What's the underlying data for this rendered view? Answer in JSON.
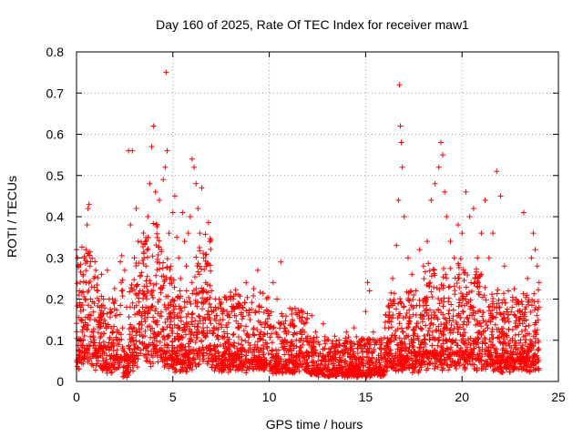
{
  "chart_data": {
    "type": "scatter",
    "title": "Day 160 of 2025, Rate Of TEC Index for receiver maw1",
    "xlabel": "GPS time / hours",
    "ylabel": "ROTI / TECUs",
    "xlim": [
      0,
      25
    ],
    "ylim": [
      0,
      0.8
    ],
    "xticks": [
      0,
      5,
      10,
      15,
      20,
      25
    ],
    "xtick_labels": [
      "0",
      "5",
      "10",
      "15",
      "20",
      "25"
    ],
    "yticks": [
      0,
      0.1,
      0.2,
      0.3,
      0.4,
      0.5,
      0.6,
      0.7,
      0.8
    ],
    "ytick_labels": [
      "0",
      "0.1",
      "0.2",
      "0.3",
      "0.4",
      "0.5",
      "0.6",
      "0.7",
      "0.8"
    ],
    "grid": true,
    "marker": "+",
    "color": "#ff0000",
    "series": [
      {
        "name": "ROTI",
        "points": [
          [
            0.0,
            0.32
          ],
          [
            0.05,
            0.3
          ],
          [
            0.1,
            0.28
          ],
          [
            0.15,
            0.22
          ],
          [
            0.2,
            0.18
          ],
          [
            0.25,
            0.15
          ],
          [
            0.3,
            0.12
          ],
          [
            0.35,
            0.26
          ],
          [
            0.4,
            0.3
          ],
          [
            0.45,
            0.2
          ],
          [
            0.5,
            0.24
          ],
          [
            0.55,
            0.38
          ],
          [
            0.6,
            0.42
          ],
          [
            0.65,
            0.43
          ],
          [
            0.7,
            0.28
          ],
          [
            0.75,
            0.16
          ],
          [
            0.8,
            0.12
          ],
          [
            0.9,
            0.25
          ],
          [
            1.0,
            0.27
          ],
          [
            1.1,
            0.22
          ],
          [
            1.2,
            0.18
          ],
          [
            1.3,
            0.26
          ],
          [
            1.4,
            0.2
          ],
          [
            1.5,
            0.14
          ],
          [
            1.6,
            0.27
          ],
          [
            1.7,
            0.2
          ],
          [
            1.8,
            0.13
          ],
          [
            1.9,
            0.1
          ],
          [
            2.0,
            0.16
          ],
          [
            2.1,
            0.12
          ],
          [
            2.2,
            0.09
          ],
          [
            2.3,
            0.06
          ],
          [
            2.4,
            0.08
          ],
          [
            2.5,
            0.27
          ],
          [
            2.6,
            0.18
          ],
          [
            2.7,
            0.56
          ],
          [
            2.8,
            0.38
          ],
          [
            2.9,
            0.56
          ],
          [
            3.0,
            0.3
          ],
          [
            3.1,
            0.42
          ],
          [
            3.2,
            0.34
          ],
          [
            3.3,
            0.22
          ],
          [
            3.4,
            0.16
          ],
          [
            3.5,
            0.3
          ],
          [
            3.6,
            0.28
          ],
          [
            3.7,
            0.4
          ],
          [
            3.8,
            0.48
          ],
          [
            3.9,
            0.57
          ],
          [
            4.0,
            0.62
          ],
          [
            4.1,
            0.46
          ],
          [
            4.2,
            0.38
          ],
          [
            4.3,
            0.44
          ],
          [
            4.4,
            0.32
          ],
          [
            4.5,
            0.49
          ],
          [
            4.6,
            0.52
          ],
          [
            4.65,
            0.75
          ],
          [
            4.7,
            0.56
          ],
          [
            4.8,
            0.36
          ],
          [
            4.9,
            0.28
          ],
          [
            5.0,
            0.41
          ],
          [
            5.1,
            0.45
          ],
          [
            5.2,
            0.35
          ],
          [
            5.3,
            0.3
          ],
          [
            5.4,
            0.25
          ],
          [
            5.5,
            0.41
          ],
          [
            5.6,
            0.34
          ],
          [
            5.7,
            0.28
          ],
          [
            5.8,
            0.36
          ],
          [
            5.9,
            0.4
          ],
          [
            6.0,
            0.54
          ],
          [
            6.1,
            0.52
          ],
          [
            6.2,
            0.48
          ],
          [
            6.3,
            0.42
          ],
          [
            6.4,
            0.36
          ],
          [
            6.5,
            0.47
          ],
          [
            6.6,
            0.3
          ],
          [
            6.7,
            0.24
          ],
          [
            6.8,
            0.2
          ],
          [
            7.0,
            0.22
          ],
          [
            7.2,
            0.18
          ],
          [
            7.4,
            0.2
          ],
          [
            7.6,
            0.15
          ],
          [
            7.8,
            0.17
          ],
          [
            8.0,
            0.2
          ],
          [
            8.2,
            0.16
          ],
          [
            8.4,
            0.14
          ],
          [
            8.6,
            0.18
          ],
          [
            8.8,
            0.24
          ],
          [
            9.0,
            0.15
          ],
          [
            9.2,
            0.13
          ],
          [
            9.4,
            0.27
          ],
          [
            9.6,
            0.18
          ],
          [
            9.8,
            0.14
          ],
          [
            10.0,
            0.16
          ],
          [
            10.2,
            0.24
          ],
          [
            10.4,
            0.2
          ],
          [
            10.6,
            0.29
          ],
          [
            10.8,
            0.13
          ],
          [
            11.0,
            0.12
          ],
          [
            11.2,
            0.15
          ],
          [
            11.4,
            0.1
          ],
          [
            11.6,
            0.12
          ],
          [
            11.8,
            0.14
          ],
          [
            12.0,
            0.11
          ],
          [
            12.2,
            0.16
          ],
          [
            12.4,
            0.12
          ],
          [
            12.6,
            0.09
          ],
          [
            12.8,
            0.14
          ],
          [
            13.0,
            0.1
          ],
          [
            13.2,
            0.08
          ],
          [
            13.4,
            0.11
          ],
          [
            13.6,
            0.09
          ],
          [
            13.8,
            0.07
          ],
          [
            14.0,
            0.12
          ],
          [
            14.2,
            0.08
          ],
          [
            14.4,
            0.13
          ],
          [
            14.6,
            0.08
          ],
          [
            14.8,
            0.1
          ],
          [
            15.0,
            0.17
          ],
          [
            15.1,
            0.24
          ],
          [
            15.2,
            0.22
          ],
          [
            15.4,
            0.12
          ],
          [
            15.6,
            0.1
          ],
          [
            15.8,
            0.08
          ],
          [
            16.0,
            0.13
          ],
          [
            16.2,
            0.16
          ],
          [
            16.4,
            0.25
          ],
          [
            16.6,
            0.33
          ],
          [
            16.7,
            0.44
          ],
          [
            16.75,
            0.72
          ],
          [
            16.8,
            0.62
          ],
          [
            16.85,
            0.58
          ],
          [
            16.9,
            0.52
          ],
          [
            17.0,
            0.4
          ],
          [
            17.2,
            0.3
          ],
          [
            17.4,
            0.26
          ],
          [
            17.6,
            0.22
          ],
          [
            17.8,
            0.32
          ],
          [
            18.0,
            0.28
          ],
          [
            18.2,
            0.34
          ],
          [
            18.4,
            0.44
          ],
          [
            18.6,
            0.48
          ],
          [
            18.8,
            0.52
          ],
          [
            18.9,
            0.58
          ],
          [
            19.0,
            0.55
          ],
          [
            19.1,
            0.46
          ],
          [
            19.2,
            0.4
          ],
          [
            19.4,
            0.34
          ],
          [
            19.6,
            0.3
          ],
          [
            19.8,
            0.38
          ],
          [
            20.0,
            0.36
          ],
          [
            20.2,
            0.46
          ],
          [
            20.4,
            0.4
          ],
          [
            20.6,
            0.42
          ],
          [
            20.8,
            0.3
          ],
          [
            21.0,
            0.36
          ],
          [
            21.2,
            0.44
          ],
          [
            21.4,
            0.3
          ],
          [
            21.6,
            0.36
          ],
          [
            21.8,
            0.51
          ],
          [
            22.0,
            0.45
          ],
          [
            22.2,
            0.28
          ],
          [
            22.4,
            0.22
          ],
          [
            22.6,
            0.18
          ],
          [
            22.8,
            0.2
          ],
          [
            23.0,
            0.15
          ],
          [
            23.2,
            0.41
          ],
          [
            23.4,
            0.25
          ],
          [
            23.6,
            0.3
          ],
          [
            23.7,
            0.36
          ],
          [
            23.8,
            0.32
          ],
          [
            23.9,
            0.28
          ],
          [
            24.0,
            0.24
          ]
        ]
      }
    ]
  }
}
